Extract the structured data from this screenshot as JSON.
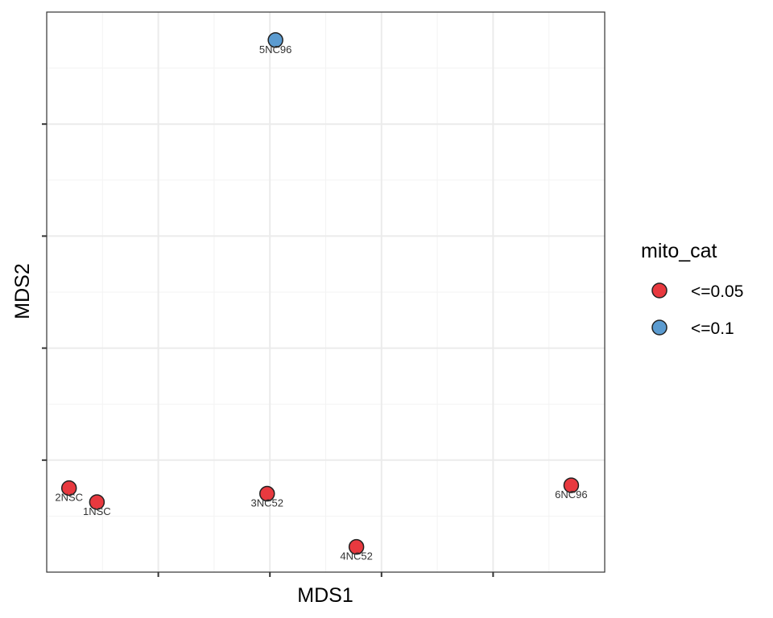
{
  "chart_data": {
    "type": "scatter",
    "xlabel": "MDS1",
    "ylabel": "MDS2",
    "xlim": [
      0,
      10
    ],
    "ylim": [
      0,
      10
    ],
    "x_ticks": [
      2,
      4,
      6,
      8
    ],
    "y_ticks": [
      2,
      4,
      6,
      8
    ],
    "x_tick_labels_shown": false,
    "y_tick_labels_shown": false,
    "grid": true,
    "legend": {
      "title": "mito_cat",
      "placement": "right",
      "entries": [
        {
          "label": "<=0.05",
          "color": "#e8393f"
        },
        {
          "label": "<=0.1",
          "color": "#5b9bd0"
        }
      ]
    },
    "points": [
      {
        "label": "5NC96",
        "x": 4.1,
        "y": 9.5,
        "category": "<=0.1"
      },
      {
        "label": "2NSC",
        "x": 0.4,
        "y": 1.5,
        "category": "<=0.05"
      },
      {
        "label": "1NSC",
        "x": 0.9,
        "y": 1.25,
        "category": "<=0.05"
      },
      {
        "label": "3NC52",
        "x": 3.95,
        "y": 1.4,
        "category": "<=0.05"
      },
      {
        "label": "4NC52",
        "x": 5.55,
        "y": 0.45,
        "category": "<=0.05"
      },
      {
        "label": "6NC96",
        "x": 9.4,
        "y": 1.55,
        "category": "<=0.05"
      }
    ]
  },
  "colors": {
    "panel_border": "#333333",
    "grid_major": "#ebebeb",
    "grid_minor": "#f3f3f3",
    "point_outline": "#222222"
  }
}
